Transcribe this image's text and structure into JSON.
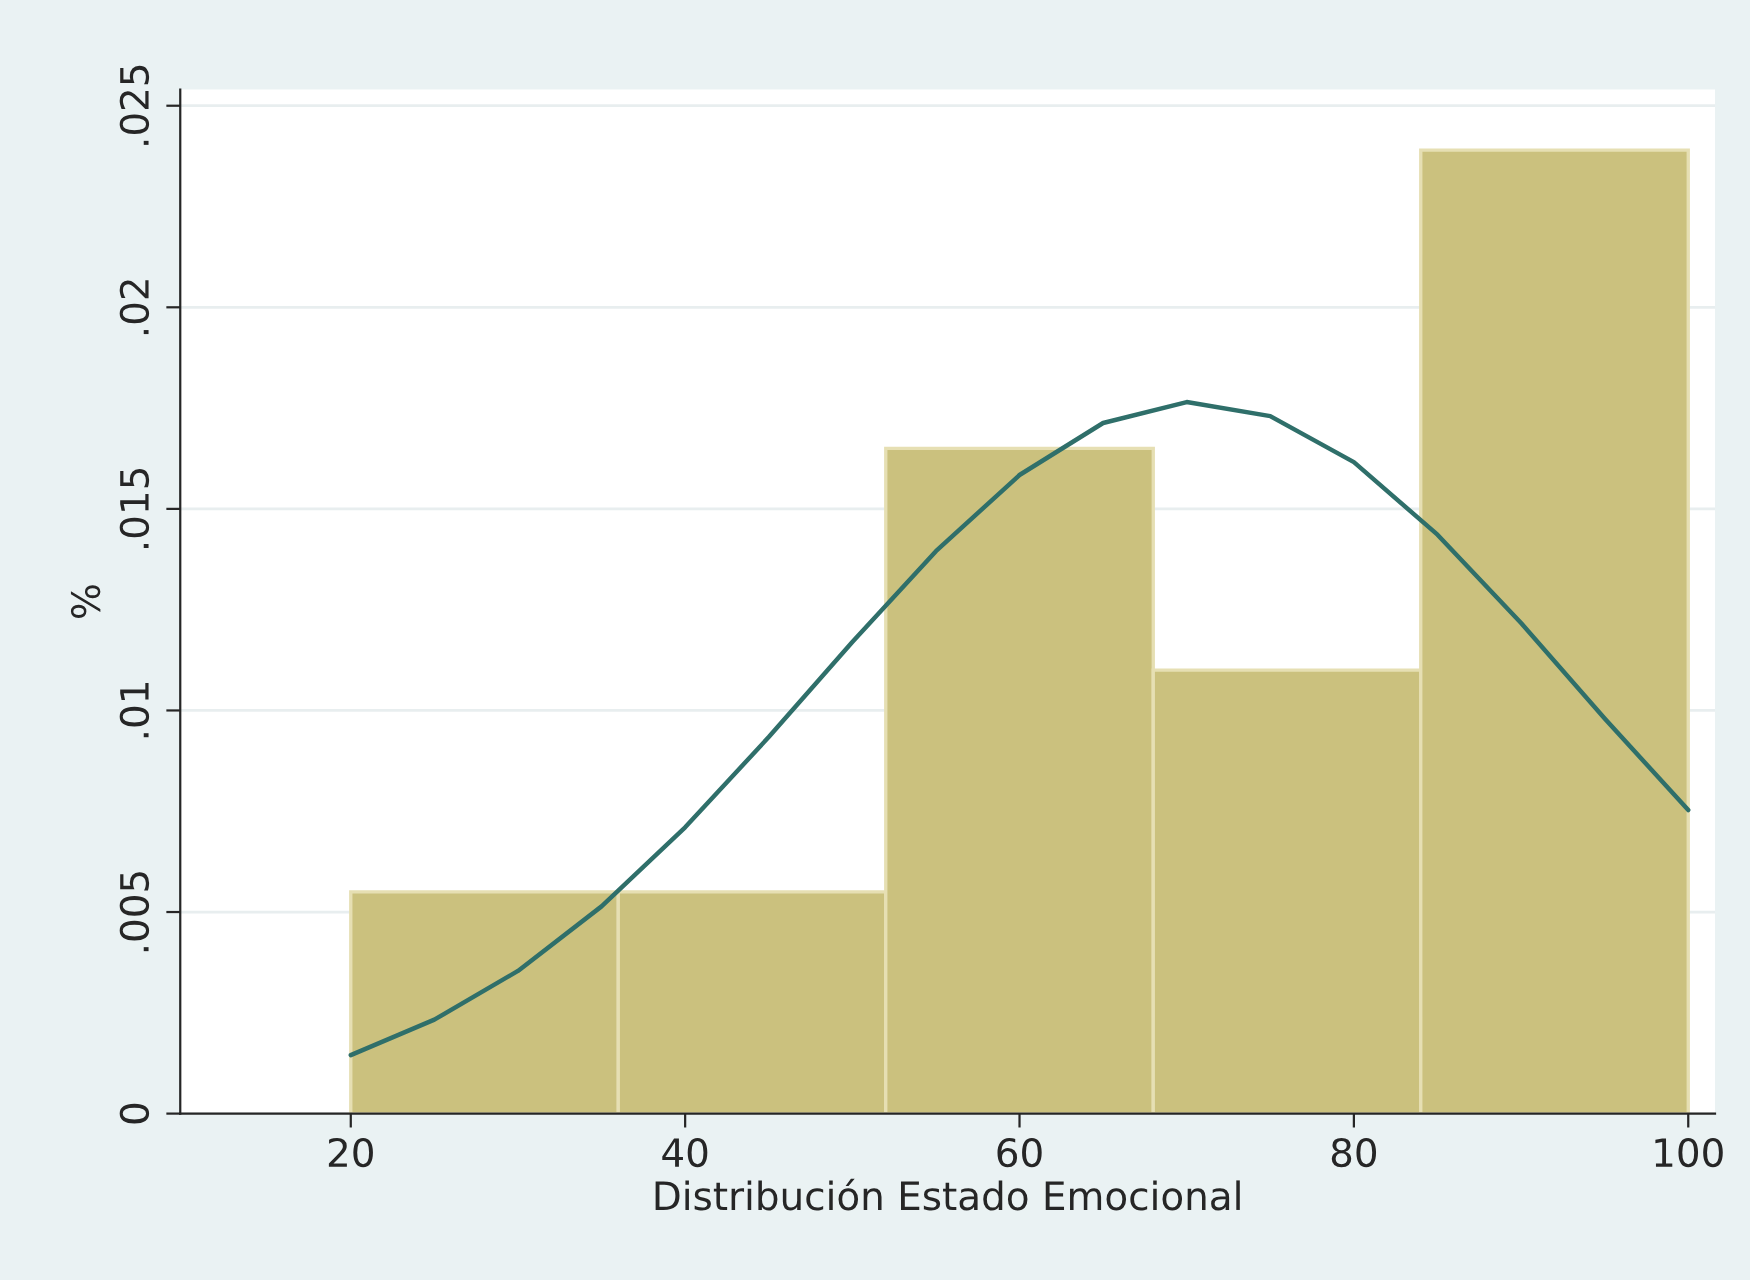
{
  "chart_data": {
    "type": "histogram",
    "xlabel": "Distribución Estado Emocional",
    "ylabel": "%",
    "bins": [
      20,
      36,
      52,
      68,
      84,
      100
    ],
    "values": [
      0.0055,
      0.0055,
      0.0165,
      0.011,
      0.0239
    ],
    "color": "#cbc17e",
    "series": [
      {
        "type": "line",
        "color": "#2f6f6a",
        "x": [
          20,
          25,
          30,
          35,
          40,
          45,
          50,
          55,
          60,
          65,
          70,
          75,
          80,
          85,
          90,
          95,
          100
        ],
        "values": [
          0.00145,
          0.00233,
          0.00354,
          0.00514,
          0.0071,
          0.00934,
          0.0117,
          0.01395,
          0.01584,
          0.01713,
          0.01765,
          0.0173,
          0.01616,
          0.01436,
          0.01217,
          0.0098,
          0.00753
        ]
      }
    ],
    "xlim": [
      9.8,
      101.6
    ],
    "ylim": [
      0,
      0.0254
    ],
    "xticks": [
      20,
      40,
      60,
      80,
      100
    ],
    "yticks": [
      0,
      {
        "value": 0.005,
        "label": ".005"
      },
      {
        "value": 0.01,
        "label": ".01"
      },
      {
        "value": 0.015,
        "label": ".015"
      },
      {
        "value": 0.02,
        "label": ".02"
      },
      {
        "value": 0.025,
        "label": ".025"
      }
    ],
    "grid": "y",
    "line_style": "solid"
  }
}
